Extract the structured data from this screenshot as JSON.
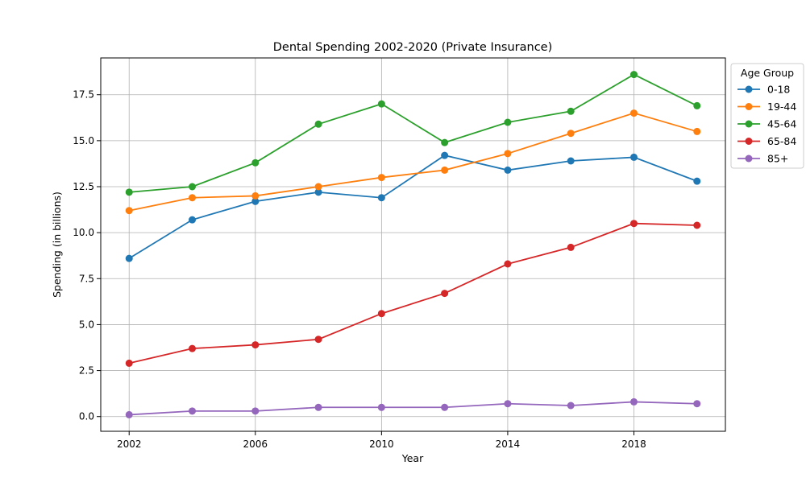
{
  "chart_data": {
    "type": "line",
    "title": "Dental Spending 2002-2020 (Private Insurance)",
    "xlabel": "Year",
    "ylabel": "Spending (in billions)",
    "x": [
      2002,
      2004,
      2006,
      2008,
      2010,
      2012,
      2014,
      2016,
      2018,
      2020
    ],
    "xlim": [
      2001.1,
      2020.9
    ],
    "ylim": [
      -0.8,
      19.5
    ],
    "x_ticks": [
      2002,
      2006,
      2010,
      2014,
      2018
    ],
    "x_tick_labels": [
      "2002",
      "2006",
      "2010",
      "2014",
      "2018"
    ],
    "y_ticks": [
      0,
      2.5,
      5,
      7.5,
      10,
      12.5,
      15,
      17.5
    ],
    "y_tick_labels": [
      "0.0",
      "2.5",
      "5.0",
      "7.5",
      "10.0",
      "12.5",
      "15.0",
      "17.5"
    ],
    "grid": true,
    "legend": {
      "title": "Age Group",
      "placement": "outside-right-top"
    },
    "series": [
      {
        "name": "0-18",
        "color": "#1f77b4",
        "values": [
          8.6,
          10.7,
          11.7,
          12.2,
          11.9,
          14.2,
          13.4,
          13.9,
          14.1,
          12.8
        ]
      },
      {
        "name": "19-44",
        "color": "#ff7f0e",
        "values": [
          11.2,
          11.9,
          12.0,
          12.5,
          13.0,
          13.4,
          14.3,
          15.4,
          16.5,
          15.5
        ]
      },
      {
        "name": "45-64",
        "color": "#2ca02c",
        "values": [
          12.2,
          12.5,
          13.8,
          15.9,
          17.0,
          14.9,
          16.0,
          16.6,
          18.6,
          16.9
        ]
      },
      {
        "name": "65-84",
        "color": "#d62728",
        "values": [
          2.9,
          3.7,
          3.9,
          4.2,
          5.6,
          6.7,
          8.3,
          9.2,
          10.5,
          10.4
        ]
      },
      {
        "name": "85+",
        "color": "#9467bd",
        "values": [
          0.1,
          0.3,
          0.3,
          0.5,
          0.5,
          0.5,
          0.7,
          0.6,
          0.8,
          0.7
        ]
      }
    ]
  }
}
